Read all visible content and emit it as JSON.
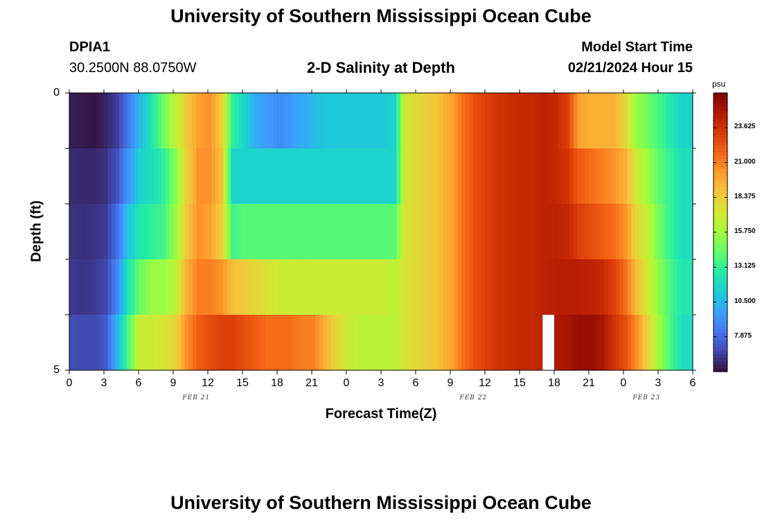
{
  "header": {
    "title": "University of Southern Mississippi Ocean Cube",
    "station_name": "DPIA1",
    "station_coords": "30.2500N  88.0750W",
    "plot_title": "2-D Salinity at Depth",
    "start_label": "Model Start Time",
    "start_value": "02/21/2024 Hour 15",
    "footer_title": "University of Southern Mississippi Ocean Cube"
  },
  "chart_data": {
    "type": "heatmap",
    "title": "2-D Salinity at Depth",
    "xlabel": "Forecast Time(Z)",
    "ylabel": "Depth (ft)",
    "x_tick_labels": [
      "0",
      "3",
      "6",
      "9",
      "12",
      "15",
      "18",
      "21",
      "0",
      "3",
      "6",
      "9",
      "12",
      "15",
      "18",
      "21",
      "0",
      "3",
      "6"
    ],
    "date_labels": [
      {
        "label": "FEB 21",
        "at_hour": 11
      },
      {
        "label": "FEB 22",
        "at_hour": 35
      },
      {
        "label": "FEB 23",
        "at_hour": 50
      }
    ],
    "y_tick_labels": [
      "0",
      "5"
    ],
    "y_range": [
      0,
      5
    ],
    "x_range_hours": [
      0,
      54
    ],
    "depth_bands": 5,
    "colorbar": {
      "unit": "psu",
      "ticks": [
        "23.625",
        "21.000",
        "18.375",
        "15.750",
        "13.125",
        "10.500",
        "7.875"
      ],
      "range": [
        5.25,
        26.25
      ],
      "colors": [
        "#30123b",
        "#4145ab",
        "#4675ed",
        "#39a2fc",
        "#1bcfd4",
        "#24eca6",
        "#61fc6c",
        "#a4fc3b",
        "#d1e834",
        "#f3c63a",
        "#fe9b2d",
        "#f36315",
        "#d93806",
        "#b11901",
        "#7a0402"
      ]
    },
    "salinity_psu": [
      {
        "hour": 0,
        "depth": [
          5.6,
          6.0,
          6.2,
          6.4,
          7.0
        ]
      },
      {
        "hour": 1,
        "depth": [
          5.5,
          5.9,
          6.1,
          6.3,
          6.9
        ]
      },
      {
        "hour": 2,
        "depth": [
          5.4,
          5.9,
          6.2,
          6.4,
          6.9
        ]
      },
      {
        "hour": 3,
        "depth": [
          5.8,
          6.2,
          6.5,
          6.8,
          7.4
        ]
      },
      {
        "hour": 4,
        "depth": [
          6.6,
          7.2,
          8.2,
          9.0,
          10.5
        ]
      },
      {
        "hour": 5,
        "depth": [
          8.5,
          9.5,
          11.0,
          12.5,
          14.0
        ]
      },
      {
        "hour": 6,
        "depth": [
          10.5,
          11.5,
          12.5,
          14.5,
          17.0
        ]
      },
      {
        "hour": 7,
        "depth": [
          12.5,
          12.0,
          13.0,
          15.5,
          17.0
        ]
      },
      {
        "hour": 8,
        "depth": [
          14.5,
          13.0,
          13.5,
          15.5,
          17.5
        ]
      },
      {
        "hour": 9,
        "depth": [
          16.5,
          15.0,
          15.5,
          16.5,
          18.0
        ]
      },
      {
        "hour": 10,
        "depth": [
          18.5,
          18.0,
          18.5,
          19.5,
          20.5
        ]
      },
      {
        "hour": 11,
        "depth": [
          20.0,
          20.5,
          20.5,
          21.0,
          22.0
        ]
      },
      {
        "hour": 12,
        "depth": [
          20.5,
          20.5,
          20.0,
          21.0,
          22.5
        ]
      },
      {
        "hour": 13,
        "depth": [
          18.5,
          19.0,
          18.5,
          20.5,
          23.0
        ]
      },
      {
        "hour": 14,
        "depth": [
          13.0,
          11.5,
          13.5,
          19.0,
          23.0
        ]
      },
      {
        "hour": 15,
        "depth": [
          11.5,
          11.5,
          14.0,
          18.5,
          22.5
        ]
      },
      {
        "hour": 16,
        "depth": [
          10.0,
          11.5,
          14.0,
          18.0,
          22.0
        ]
      },
      {
        "hour": 17,
        "depth": [
          9.5,
          11.5,
          14.0,
          17.5,
          21.5
        ]
      },
      {
        "hour": 18,
        "depth": [
          9.0,
          11.5,
          14.0,
          17.0,
          21.5
        ]
      },
      {
        "hour": 19,
        "depth": [
          9.5,
          11.5,
          14.0,
          17.0,
          21.5
        ]
      },
      {
        "hour": 20,
        "depth": [
          10.0,
          11.5,
          14.0,
          17.0,
          21.0
        ]
      },
      {
        "hour": 21,
        "depth": [
          10.5,
          11.5,
          14.0,
          17.0,
          21.0
        ]
      },
      {
        "hour": 22,
        "depth": [
          11.0,
          11.5,
          14.0,
          17.0,
          19.5
        ]
      },
      {
        "hour": 23,
        "depth": [
          11.0,
          11.5,
          14.0,
          17.0,
          18.0
        ]
      },
      {
        "hour": 24,
        "depth": [
          11.0,
          11.5,
          14.0,
          17.0,
          17.0
        ]
      },
      {
        "hour": 25,
        "depth": [
          11.0,
          11.5,
          14.0,
          17.0,
          16.5
        ]
      },
      {
        "hour": 26,
        "depth": [
          11.0,
          11.5,
          14.0,
          17.0,
          16.5
        ]
      },
      {
        "hour": 27,
        "depth": [
          11.0,
          11.5,
          14.0,
          17.0,
          16.5
        ]
      },
      {
        "hour": 28,
        "depth": [
          11.5,
          11.5,
          14.0,
          16.5,
          16.5
        ]
      },
      {
        "hour": 29,
        "depth": [
          17.5,
          17.5,
          17.5,
          17.5,
          17.5
        ]
      },
      {
        "hour": 30,
        "depth": [
          18.0,
          18.0,
          18.0,
          18.0,
          18.0
        ]
      },
      {
        "hour": 31,
        "depth": [
          18.5,
          18.5,
          18.5,
          18.5,
          18.5
        ]
      },
      {
        "hour": 32,
        "depth": [
          19.0,
          19.0,
          19.0,
          19.0,
          19.0
        ]
      },
      {
        "hour": 33,
        "depth": [
          20.0,
          20.0,
          20.0,
          20.0,
          20.0
        ]
      },
      {
        "hour": 34,
        "depth": [
          21.5,
          21.5,
          21.5,
          21.5,
          21.5
        ]
      },
      {
        "hour": 35,
        "depth": [
          22.5,
          22.5,
          22.5,
          22.5,
          22.5
        ]
      },
      {
        "hour": 36,
        "depth": [
          23.0,
          23.0,
          23.0,
          23.0,
          23.0
        ]
      },
      {
        "hour": 37,
        "depth": [
          23.5,
          23.5,
          23.5,
          23.5,
          23.5
        ]
      },
      {
        "hour": 38,
        "depth": [
          23.8,
          23.8,
          23.8,
          23.8,
          23.8
        ]
      },
      {
        "hour": 39,
        "depth": [
          24.0,
          24.0,
          24.0,
          24.0,
          24.0
        ]
      },
      {
        "hour": 40,
        "depth": [
          24.0,
          24.0,
          24.0,
          24.0,
          24.0
        ]
      },
      {
        "hour": 41,
        "depth": [
          24.3,
          24.3,
          24.3,
          24.3,
          24.3
        ]
      },
      {
        "hour": 42,
        "depth": [
          24.0,
          24.0,
          24.3,
          24.5,
          24.8
        ]
      },
      {
        "hour": 43,
        "depth": [
          23.0,
          23.5,
          24.0,
          24.5,
          25.0
        ]
      },
      {
        "hour": 44,
        "depth": [
          20.0,
          22.0,
          23.0,
          24.5,
          25.5
        ]
      },
      {
        "hour": 45,
        "depth": [
          19.5,
          21.5,
          22.5,
          24.3,
          25.5
        ]
      },
      {
        "hour": 46,
        "depth": [
          19.5,
          21.0,
          22.0,
          24.0,
          25.0
        ]
      },
      {
        "hour": 47,
        "depth": [
          19.5,
          20.5,
          21.5,
          23.0,
          23.5
        ]
      },
      {
        "hour": 48,
        "depth": [
          18.0,
          19.5,
          20.5,
          21.5,
          22.5
        ]
      },
      {
        "hour": 49,
        "depth": [
          15.5,
          17.0,
          18.0,
          19.0,
          20.5
        ]
      },
      {
        "hour": 50,
        "depth": [
          14.5,
          15.5,
          16.5,
          17.0,
          18.0
        ]
      },
      {
        "hour": 51,
        "depth": [
          13.5,
          14.0,
          14.5,
          15.0,
          15.5
        ]
      },
      {
        "hour": 52,
        "depth": [
          12.5,
          13.0,
          13.0,
          13.5,
          13.5
        ]
      },
      {
        "hour": 53,
        "depth": [
          11.5,
          12.0,
          12.0,
          12.5,
          12.0
        ]
      }
    ],
    "missing_cells": [
      {
        "hour": 41,
        "depth_band": 4
      }
    ]
  }
}
